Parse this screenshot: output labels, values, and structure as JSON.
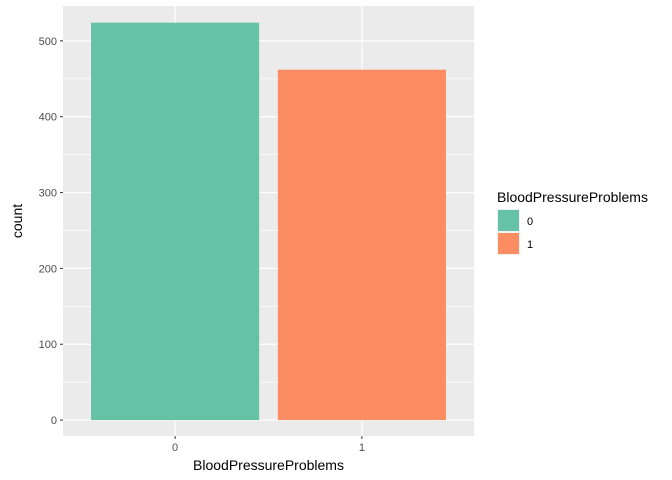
{
  "chart_data": {
    "type": "bar",
    "title": "",
    "xlabel": "BloodPressureProblems",
    "ylabel": "count",
    "categories": [
      "0",
      "1"
    ],
    "values": [
      524,
      462
    ],
    "colors": [
      "#66c2a5",
      "#fc8d62"
    ],
    "ylim": [
      -21,
      546
    ],
    "yticks": [
      0,
      100,
      200,
      300,
      400,
      500
    ],
    "ytick_labels": [
      "0",
      "100",
      "200",
      "300",
      "400",
      "500"
    ],
    "grid": true,
    "panel_background": "#ebebeb",
    "legend": {
      "title": "BloodPressureProblems",
      "placement": "right",
      "entries": [
        {
          "label": "0",
          "color": "#66c2a5"
        },
        {
          "label": "1",
          "color": "#fc8d62"
        }
      ]
    }
  }
}
